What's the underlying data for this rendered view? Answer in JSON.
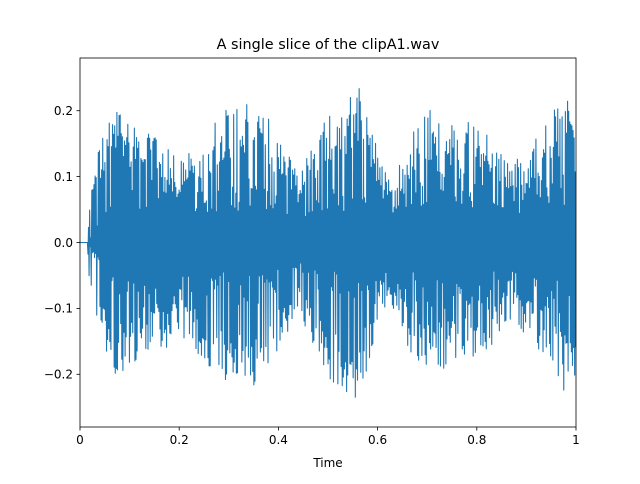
{
  "chart_data": {
    "type": "line",
    "title": "A single slice of the clipA1.wav",
    "xlabel": "Time",
    "ylabel": "",
    "xlim": [
      0,
      1
    ],
    "ylim": [
      -0.28,
      0.28
    ],
    "grid": false,
    "legend": "none",
    "x_ticks": [
      {
        "value": 0,
        "label": "0"
      },
      {
        "value": 0.2,
        "label": "0.2"
      },
      {
        "value": 0.4,
        "label": "0.4"
      },
      {
        "value": 0.6,
        "label": "0.6"
      },
      {
        "value": 0.8,
        "label": "0.8"
      },
      {
        "value": 1,
        "label": "1"
      }
    ],
    "y_ticks": [
      {
        "value": -0.2,
        "label": "−0.2"
      },
      {
        "value": -0.1,
        "label": "−0.1"
      },
      {
        "value": 0.0,
        "label": "0.0"
      },
      {
        "value": 0.1,
        "label": "0.1"
      },
      {
        "value": 0.2,
        "label": "0.2"
      }
    ],
    "series_color": "#1f77b4",
    "signal_start": 0.015,
    "envelope": {
      "x": [
        0.015,
        0.02,
        0.03,
        0.05,
        0.075,
        0.1,
        0.13,
        0.16,
        0.2,
        0.23,
        0.26,
        0.29,
        0.32,
        0.34,
        0.36,
        0.38,
        0.41,
        0.44,
        0.47,
        0.5,
        0.53,
        0.56,
        0.58,
        0.6,
        0.63,
        0.66,
        0.69,
        0.72,
        0.75,
        0.78,
        0.81,
        0.84,
        0.87,
        0.9,
        0.93,
        0.96,
        0.98,
        1.0
      ],
      "upper": [
        0.0,
        0.06,
        0.13,
        0.17,
        0.21,
        0.19,
        0.165,
        0.165,
        0.12,
        0.15,
        0.17,
        0.21,
        0.21,
        0.21,
        0.21,
        0.19,
        0.15,
        0.11,
        0.15,
        0.2,
        0.21,
        0.245,
        0.2,
        0.14,
        0.1,
        0.14,
        0.21,
        0.2,
        0.18,
        0.19,
        0.18,
        0.15,
        0.12,
        0.14,
        0.17,
        0.21,
        0.225,
        0.22
      ],
      "lower": [
        0.0,
        -0.08,
        -0.13,
        -0.17,
        -0.21,
        -0.19,
        -0.165,
        -0.165,
        -0.15,
        -0.16,
        -0.2,
        -0.21,
        -0.21,
        -0.22,
        -0.22,
        -0.2,
        -0.15,
        -0.11,
        -0.17,
        -0.22,
        -0.22,
        -0.255,
        -0.2,
        -0.12,
        -0.1,
        -0.16,
        -0.21,
        -0.2,
        -0.18,
        -0.19,
        -0.18,
        -0.15,
        -0.12,
        -0.14,
        -0.17,
        -0.21,
        -0.23,
        -0.22
      ]
    },
    "inner_band": {
      "x": [
        0.015,
        0.05,
        0.1,
        0.15,
        0.2,
        0.25,
        0.3,
        0.35,
        0.4,
        0.45,
        0.5,
        0.55,
        0.6,
        0.65,
        0.7,
        0.75,
        0.8,
        0.85,
        0.9,
        0.95,
        1.0
      ],
      "amplitude": [
        0.0,
        0.06,
        0.09,
        0.11,
        0.1,
        0.08,
        0.09,
        0.1,
        0.08,
        0.06,
        0.08,
        0.09,
        0.09,
        0.08,
        0.1,
        0.12,
        0.1,
        0.08,
        0.09,
        0.11,
        0.11
      ]
    }
  }
}
